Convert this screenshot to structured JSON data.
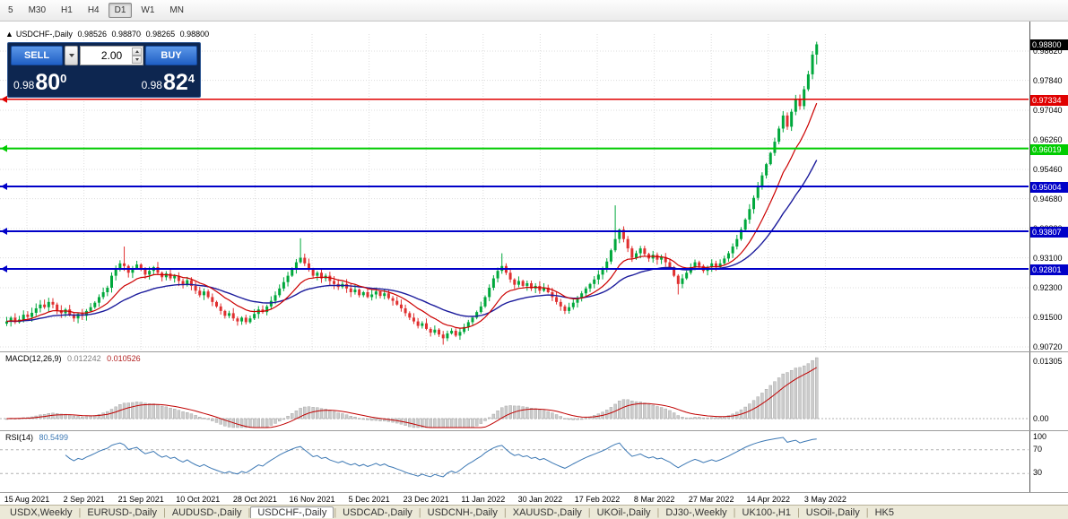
{
  "toolbar": {
    "timeframes": [
      "5",
      "M30",
      "H1",
      "H4",
      "D1",
      "W1",
      "MN"
    ],
    "active": "D1"
  },
  "overlay": {
    "marker": "▲",
    "title": "USDCHF-,Daily",
    "open": "0.98526",
    "high": "0.98870",
    "low": "0.98265",
    "close": "0.98800"
  },
  "trade_panel": {
    "sell_label": "SELL",
    "buy_label": "BUY",
    "volume": "2.00",
    "sell_price": {
      "prefix": "0.98",
      "big": "80",
      "sup": "0"
    },
    "buy_price": {
      "prefix": "0.98",
      "big": "82",
      "sup": "4"
    }
  },
  "price_axis": {
    "current": "0.98800",
    "current_bg": "#000000",
    "labels": [
      "0.98620",
      "0.97840",
      "0.97040",
      "0.96260",
      "0.95460",
      "0.94680",
      "0.93880",
      "0.93100",
      "0.92300",
      "0.91500",
      "0.90720"
    ]
  },
  "macd_panel": {
    "title": "MACD(12,26,9)",
    "main_value": "0.012242",
    "signal_value": "0.010526",
    "scale_top": "0.01305",
    "scale_zero": "0.00"
  },
  "rsi_panel": {
    "title": "RSI(14)",
    "value": "80.5499",
    "scale_labels": [
      "100",
      "70",
      "30"
    ],
    "levels": [
      70,
      30
    ]
  },
  "tabs": {
    "items": [
      {
        "label": "USDX,Weekly"
      },
      {
        "label": "EURUSD-,Daily"
      },
      {
        "label": "AUDUSD-,Daily"
      },
      {
        "label": "USDCHF-,Daily",
        "active": true
      },
      {
        "label": "USDCAD-,Daily"
      },
      {
        "label": "USDCNH-,Daily"
      },
      {
        "label": "XAUUSD-,Daily"
      },
      {
        "label": "UKOil-,Daily"
      },
      {
        "label": "DJ30-,Weekly"
      },
      {
        "label": "UK100-,H1"
      },
      {
        "label": "USOil-,Daily"
      },
      {
        "label": "HK5"
      }
    ]
  },
  "chart_data": {
    "type": "candlestick",
    "symbol": "USDCHF-",
    "timeframe": "Daily",
    "last_candle": {
      "open": 0.98526,
      "high": 0.9887,
      "low": 0.98265,
      "close": 0.988
    },
    "x_labels": [
      "15 Aug 2021",
      "2 Sep 2021",
      "21 Sep 2021",
      "10 Oct 2021",
      "28 Oct 2021",
      "16 Nov 2021",
      "5 Dec 2021",
      "23 Dec 2021",
      "11 Jan 2022",
      "30 Jan 2022",
      "17 Feb 2022",
      "8 Mar 2022",
      "27 Mar 2022",
      "14 Apr 2022",
      "3 May 2022"
    ],
    "y_axis_labels": [
      "0.98620",
      "0.97840",
      "0.97040",
      "0.96260",
      "0.95460",
      "0.94680",
      "0.93880",
      "0.93100",
      "0.92300",
      "0.91500",
      "0.90720"
    ],
    "levels": [
      {
        "value": 0.97334,
        "label": "0.97334",
        "color": "#e00000",
        "width": 1.5
      },
      {
        "value": 0.96019,
        "label": "0.96019",
        "color": "#00cc00",
        "width": 2
      },
      {
        "value": 0.95004,
        "label": "0.95004",
        "color": "#0000c8",
        "width": 2
      },
      {
        "value": 0.93807,
        "label": "0.93807",
        "color": "#0000c8",
        "width": 2
      },
      {
        "value": 0.92801,
        "label": "0.92801",
        "color": "#0000c8",
        "width": 2
      }
    ],
    "closes": [
      0.914,
      0.915,
      0.9138,
      0.9145,
      0.9158,
      0.9152,
      0.9163,
      0.9175,
      0.9185,
      0.9178,
      0.9192,
      0.9185,
      0.917,
      0.9162,
      0.9172,
      0.9158,
      0.9148,
      0.916,
      0.9155,
      0.9168,
      0.9178,
      0.919,
      0.9205,
      0.9218,
      0.923,
      0.9262,
      0.928,
      0.9295,
      0.9288,
      0.927,
      0.9282,
      0.9292,
      0.9278,
      0.9265,
      0.9275,
      0.9285,
      0.927,
      0.9258,
      0.9268,
      0.9255,
      0.9262,
      0.9248,
      0.9238,
      0.925,
      0.9235,
      0.9222,
      0.921,
      0.922,
      0.9205,
      0.9192,
      0.918,
      0.9168,
      0.9155,
      0.9162,
      0.9148,
      0.914,
      0.915,
      0.9138,
      0.9148,
      0.916,
      0.9172,
      0.9165,
      0.918,
      0.9195,
      0.921,
      0.9228,
      0.9245,
      0.9262,
      0.928,
      0.9298,
      0.931,
      0.9295,
      0.928,
      0.9262,
      0.927,
      0.9255,
      0.9262,
      0.9248,
      0.924,
      0.9232,
      0.924,
      0.9228,
      0.9218,
      0.9225,
      0.921,
      0.9218,
      0.9205,
      0.9212,
      0.922,
      0.9208,
      0.9215,
      0.9202,
      0.9195,
      0.9185,
      0.9175,
      0.9162,
      0.915,
      0.914,
      0.9128,
      0.9135,
      0.912,
      0.911,
      0.9118,
      0.9105,
      0.9095,
      0.9108,
      0.9115,
      0.9102,
      0.9112,
      0.9125,
      0.9138,
      0.915,
      0.9165,
      0.918,
      0.9205,
      0.923,
      0.9255,
      0.9275,
      0.9288,
      0.927,
      0.9252,
      0.9238,
      0.9248,
      0.9235,
      0.9242,
      0.9228,
      0.9235,
      0.9222,
      0.923,
      0.9218,
      0.9205,
      0.9192,
      0.918,
      0.9168,
      0.9178,
      0.919,
      0.9202,
      0.9215,
      0.9228,
      0.924,
      0.9252,
      0.9265,
      0.928,
      0.93,
      0.933,
      0.936,
      0.9385,
      0.936,
      0.9335,
      0.931,
      0.9322,
      0.9335,
      0.932,
      0.9308,
      0.9318,
      0.9305,
      0.9312,
      0.9298,
      0.9285,
      0.9262,
      0.924,
      0.9255,
      0.927,
      0.9285,
      0.9298,
      0.9288,
      0.9275,
      0.9285,
      0.9295,
      0.9285,
      0.9295,
      0.9308,
      0.9322,
      0.934,
      0.936,
      0.9385,
      0.9412,
      0.944,
      0.947,
      0.95,
      0.953,
      0.956,
      0.959,
      0.962,
      0.9655,
      0.969,
      0.966,
      0.97,
      0.9733,
      0.9715,
      0.976,
      0.98,
      0.98526,
      0.988
    ],
    "wick_overrides": {
      "28": {
        "h": 0.934
      },
      "70": {
        "h": 0.9362
      },
      "104": {
        "l": 0.9078
      },
      "118": {
        "h": 0.9322
      },
      "145": {
        "h": 0.945
      },
      "160": {
        "l": 0.9212
      },
      "188": {
        "h": 0.9745
      },
      "193": {
        "h": 0.9887,
        "l": 0.98265
      }
    },
    "indicators": {
      "macd": {
        "fast": 12,
        "slow": 26,
        "signal": 9,
        "current_main": 0.012242,
        "current_signal": 0.010526
      },
      "rsi": {
        "period": 14,
        "current": 80.5499
      }
    },
    "colors": {
      "up": "#00a83c",
      "down": "#e03030",
      "ma_fast": "#cc0000",
      "ma_slow": "#1c1c9c",
      "macd_hist": "#cccccc",
      "macd_signal": "#c00000",
      "rsi_line": "#3c78b4"
    }
  }
}
